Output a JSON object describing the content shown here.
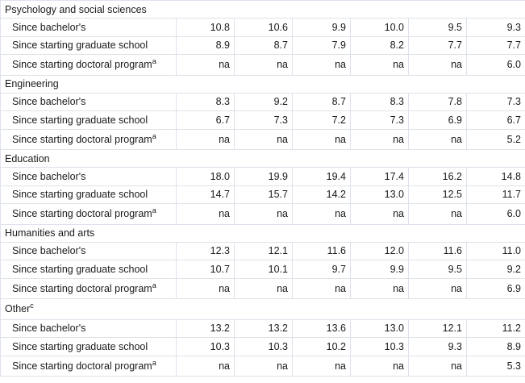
{
  "table": {
    "sections": [
      {
        "name": "Psychology and social sciences",
        "note": "",
        "rows": [
          {
            "label": "Since bachelor's",
            "note": "",
            "values": [
              "10.8",
              "10.6",
              "9.9",
              "10.0",
              "9.5",
              "9.3"
            ]
          },
          {
            "label": "Since starting graduate school",
            "note": "",
            "values": [
              "8.9",
              "8.7",
              "7.9",
              "8.2",
              "7.7",
              "7.7"
            ]
          },
          {
            "label": "Since starting doctoral program",
            "note": "a",
            "values": [
              "na",
              "na",
              "na",
              "na",
              "na",
              "6.0"
            ]
          }
        ]
      },
      {
        "name": "Engineering",
        "note": "",
        "rows": [
          {
            "label": "Since bachelor's",
            "note": "",
            "values": [
              "8.3",
              "9.2",
              "8.7",
              "8.3",
              "7.8",
              "7.3"
            ]
          },
          {
            "label": "Since starting graduate school",
            "note": "",
            "values": [
              "6.7",
              "7.3",
              "7.2",
              "7.3",
              "6.9",
              "6.7"
            ]
          },
          {
            "label": "Since starting doctoral program",
            "note": "a",
            "values": [
              "na",
              "na",
              "na",
              "na",
              "na",
              "5.2"
            ]
          }
        ]
      },
      {
        "name": "Education",
        "note": "",
        "rows": [
          {
            "label": "Since bachelor's",
            "note": "",
            "values": [
              "18.0",
              "19.9",
              "19.4",
              "17.4",
              "16.2",
              "14.8"
            ]
          },
          {
            "label": "Since starting graduate school",
            "note": "",
            "values": [
              "14.7",
              "15.7",
              "14.2",
              "13.0",
              "12.5",
              "11.7"
            ]
          },
          {
            "label": "Since starting doctoral program",
            "note": "a",
            "values": [
              "na",
              "na",
              "na",
              "na",
              "na",
              "6.0"
            ]
          }
        ]
      },
      {
        "name": "Humanities and arts",
        "note": "",
        "rows": [
          {
            "label": "Since bachelor's",
            "note": "",
            "values": [
              "12.3",
              "12.1",
              "11.6",
              "12.0",
              "11.6",
              "11.0"
            ]
          },
          {
            "label": "Since starting graduate school",
            "note": "",
            "values": [
              "10.7",
              "10.1",
              "9.7",
              "9.9",
              "9.5",
              "9.2"
            ]
          },
          {
            "label": "Since starting doctoral program",
            "note": "a",
            "values": [
              "na",
              "na",
              "na",
              "na",
              "na",
              "6.9"
            ]
          }
        ]
      },
      {
        "name": "Other",
        "note": "c",
        "rows": [
          {
            "label": "Since bachelor's",
            "note": "",
            "values": [
              "13.2",
              "13.2",
              "13.6",
              "13.0",
              "12.1",
              "11.2"
            ]
          },
          {
            "label": "Since starting graduate school",
            "note": "",
            "values": [
              "10.3",
              "10.3",
              "10.2",
              "10.3",
              "9.3",
              "8.9"
            ]
          },
          {
            "label": "Since starting doctoral program",
            "note": "a",
            "values": [
              "na",
              "na",
              "na",
              "na",
              "na",
              "5.3"
            ]
          }
        ]
      }
    ]
  }
}
